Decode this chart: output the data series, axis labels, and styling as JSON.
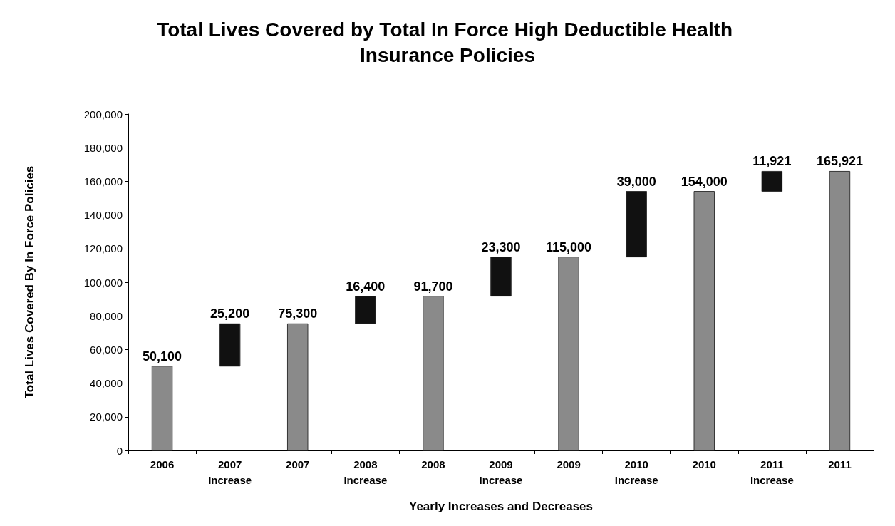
{
  "chart_data": {
    "type": "bar",
    "title": "Total Lives Covered by Total In Force High Deductible Health Insurance Policies",
    "xlabel": "Yearly Increases and Decreases",
    "ylabel": "Total Lives Covered By In Force Policies",
    "categories": [
      "2006",
      "2007\nIncrease",
      "2007",
      "2008\nIncrease",
      "2008",
      "2009\nIncrease",
      "2009",
      "2010\nIncrease",
      "2010",
      "2011\nIncrease",
      "2011"
    ],
    "values": [
      50100,
      25200,
      75300,
      16400,
      91700,
      23300,
      115000,
      39000,
      154000,
      11921,
      165921
    ],
    "base": [
      0,
      50100,
      0,
      75300,
      0,
      91700,
      0,
      115000,
      0,
      154000,
      0
    ],
    "colors": [
      "#8a8a8a",
      "#111111",
      "#8a8a8a",
      "#111111",
      "#8a8a8a",
      "#111111",
      "#8a8a8a",
      "#111111",
      "#8a8a8a",
      "#111111",
      "#8a8a8a"
    ],
    "value_labels": [
      "50,100",
      "25,200",
      "75,300",
      "16,400",
      "91,700",
      "23,300",
      "115,000",
      "39,000",
      "154,000",
      "11,921",
      "165,921"
    ],
    "ylim": [
      0,
      200000
    ],
    "yticks": [
      {
        "value": 0,
        "label": "0"
      },
      {
        "value": 20000,
        "label": "20,000"
      },
      {
        "value": 40000,
        "label": "40,000"
      },
      {
        "value": 60000,
        "label": "60,000"
      },
      {
        "value": 80000,
        "label": "80,000"
      },
      {
        "value": 100000,
        "label": "100,000"
      },
      {
        "value": 120000,
        "label": "120,000"
      },
      {
        "value": 140000,
        "label": "140,000"
      },
      {
        "value": 160000,
        "label": "160,000"
      },
      {
        "value": 180000,
        "label": "180,000"
      },
      {
        "value": 200000,
        "label": "200,000"
      }
    ],
    "grid": false
  }
}
